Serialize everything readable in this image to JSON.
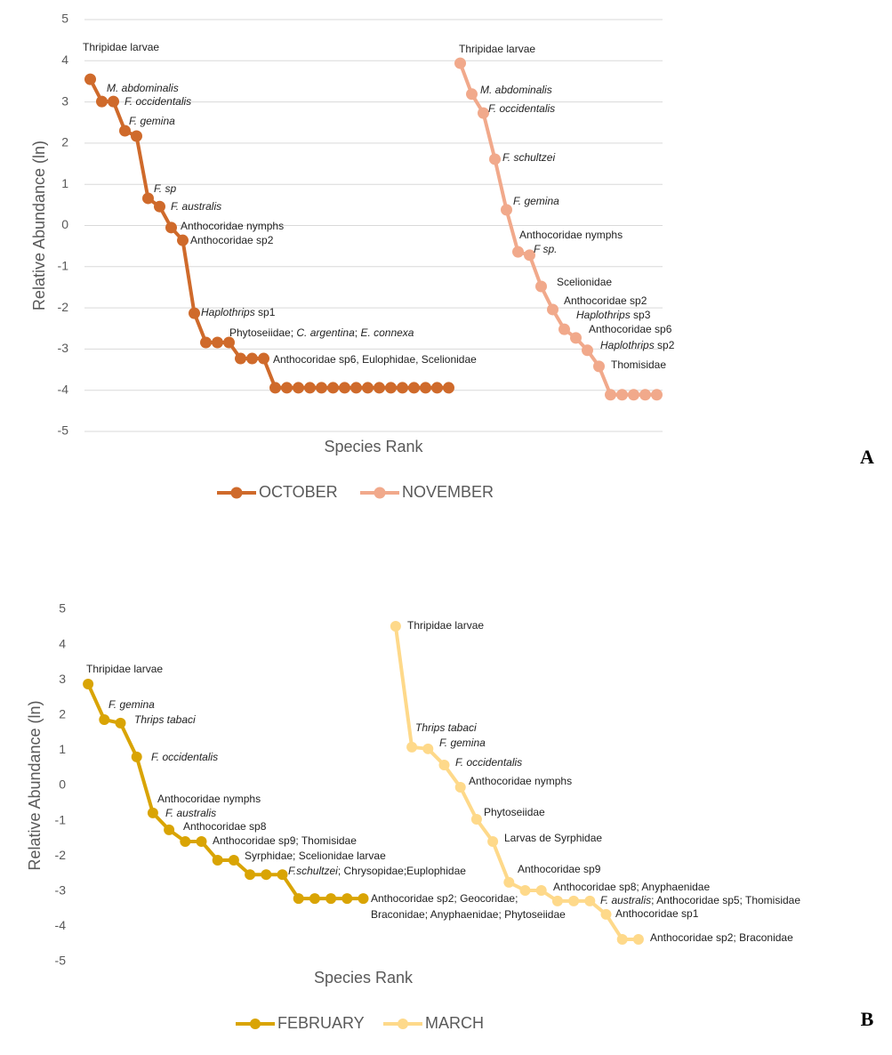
{
  "chart_data": [
    {
      "type": "line",
      "panel_label": "A",
      "y_label": "Relative Abundance (ln)",
      "x_label": "Species Rank",
      "ylim": [
        -5,
        5
      ],
      "yticks": [
        -5,
        -4,
        -3,
        -2,
        -1,
        0,
        1,
        2,
        3,
        4,
        5
      ],
      "grid": true,
      "legend": "bottom",
      "categories": [
        null,
        null,
        null,
        null,
        null,
        null,
        null,
        null,
        null,
        null,
        null,
        null,
        null,
        null,
        null,
        null,
        null,
        null,
        null,
        null,
        null,
        null,
        null,
        null,
        null,
        null,
        null,
        null,
        null,
        null,
        null,
        null,
        null,
        null,
        null,
        null,
        null,
        null,
        null,
        null,
        null,
        null,
        null,
        null,
        null,
        null,
        null,
        null,
        null,
        null
      ],
      "series": [
        {
          "name": "OCTOBER",
          "color": "#cf6a2b",
          "values": [
            3.55,
            3.01,
            3.01,
            2.3,
            2.17,
            0.66,
            0.46,
            -0.05,
            -0.36,
            -2.13,
            -2.84,
            -2.84,
            -2.84,
            -3.23,
            -3.23,
            -3.23,
            -3.94,
            -3.94,
            -3.94,
            -3.94,
            -3.94,
            -3.94,
            -3.94,
            -3.94,
            -3.94,
            -3.94,
            -3.94,
            -3.94,
            -3.94,
            -3.94,
            -3.94,
            -3.94,
            null,
            null,
            null,
            null,
            null,
            null,
            null,
            null,
            null,
            null,
            null,
            null,
            null,
            null,
            null,
            null,
            null,
            null
          ],
          "annotations": [
            [
              {
                "text": "Thripidae larvae",
                "italic": false
              }
            ],
            [
              {
                "text": "M. abdominalis",
                "italic": true
              }
            ],
            [
              {
                "text": "F. occidentalis",
                "italic": true
              }
            ],
            [
              {
                "text": "F. gemina",
                "italic": true
              }
            ],
            [
              {
                "text": "F. sp",
                "italic": true
              }
            ],
            [
              {
                "text": "F. australis",
                "italic": true
              }
            ],
            [
              {
                "text": "Anthocoridae nymphs",
                "italic": false
              }
            ],
            [
              {
                "text": "Anthocoridae sp2",
                "italic": false
              }
            ],
            [
              {
                "text": "Haplothrips",
                "italic": true
              },
              {
                "text": " sp1",
                "italic": false
              }
            ],
            [
              {
                "text": "Phytoseiidae; ",
                "italic": false
              },
              {
                "text": "C. argentina",
                "italic": true
              },
              {
                "text": "; ",
                "italic": false
              },
              {
                "text": "E. connexa",
                "italic": true
              }
            ],
            [
              {
                "text": "Anthocoridae sp6, Eulophidae, Scelionidae",
                "italic": false
              }
            ]
          ]
        },
        {
          "name": "NOVEMBER",
          "color": "#f1a98b",
          "values": [
            null,
            null,
            null,
            null,
            null,
            null,
            null,
            null,
            null,
            null,
            null,
            null,
            null,
            null,
            null,
            null,
            null,
            null,
            null,
            null,
            null,
            null,
            null,
            null,
            null,
            null,
            null,
            null,
            null,
            null,
            null,
            null,
            3.94,
            3.19,
            2.73,
            1.61,
            0.38,
            -0.64,
            -0.72,
            -1.48,
            -2.04,
            -2.52,
            -2.73,
            -3.03,
            -3.42,
            -4.11,
            -4.11,
            -4.11,
            -4.11,
            -4.11
          ],
          "annotations": [
            [
              {
                "text": "Thripidae larvae",
                "italic": false
              }
            ],
            [
              {
                "text": "M. abdominalis",
                "italic": true
              }
            ],
            [
              {
                "text": "F. occidentalis",
                "italic": true
              }
            ],
            [
              {
                "text": "F. schultzei",
                "italic": true
              }
            ],
            [
              {
                "text": "F. gemina",
                "italic": true
              }
            ],
            [
              {
                "text": "Anthocoridae nymphs",
                "italic": false
              }
            ],
            [
              {
                "text": "F sp.",
                "italic": true
              }
            ],
            [
              {
                "text": "Scelionidae",
                "italic": false
              }
            ],
            [
              {
                "text": "Anthocoridae sp2",
                "italic": false
              }
            ],
            [
              {
                "text": "Haplothrips",
                "italic": true
              },
              {
                "text": " sp3",
                "italic": false
              }
            ],
            [
              {
                "text": "Anthocoridae sp6",
                "italic": false
              }
            ],
            [
              {
                "text": "Haplothrips",
                "italic": true
              },
              {
                "text": " sp2",
                "italic": false
              }
            ],
            [
              {
                "text": "Thomisidae",
                "italic": false
              }
            ]
          ]
        }
      ]
    },
    {
      "type": "line",
      "panel_label": "B",
      "y_label": "Relative Abundance (ln)",
      "x_label": "Species Rank",
      "ylim": [
        -5,
        5
      ],
      "yticks": [
        -5,
        -4,
        -3,
        -2,
        -1,
        0,
        1,
        2,
        3,
        4,
        5
      ],
      "grid": false,
      "legend": "bottom",
      "categories": [
        null,
        null,
        null,
        null,
        null,
        null,
        null,
        null,
        null,
        null,
        null,
        null,
        null,
        null,
        null,
        null,
        null,
        null,
        null,
        null,
        null,
        null,
        null,
        null,
        null,
        null,
        null,
        null,
        null,
        null,
        null,
        null,
        null,
        null,
        null
      ],
      "series": [
        {
          "name": "FEBRUARY",
          "color": "#d9a404",
          "values": [
            2.88,
            1.87,
            1.77,
            0.81,
            -0.78,
            -1.26,
            -1.59,
            -1.59,
            -2.12,
            -2.12,
            -2.53,
            -2.53,
            -2.53,
            -3.21,
            -3.21,
            -3.21,
            -3.21,
            -3.21,
            null,
            null,
            null,
            null,
            null,
            null,
            null,
            null,
            null,
            null,
            null,
            null,
            null,
            null,
            null,
            null,
            null
          ],
          "annotations": [
            [
              {
                "text": "Thripidae larvae",
                "italic": false
              }
            ],
            [
              {
                "text": "F. gemina",
                "italic": true
              }
            ],
            [
              {
                "text": "Thrips tabaci",
                "italic": true
              }
            ],
            [
              {
                "text": "F. occidentalis",
                "italic": true
              }
            ],
            [
              {
                "text": "Anthocoridae nymphs",
                "italic": false
              }
            ],
            [
              {
                "text": "F. australis",
                "italic": true
              }
            ],
            [
              {
                "text": "Anthocoridae sp8",
                "italic": false
              }
            ],
            [
              {
                "text": "Anthocoridae sp9; Thomisidae",
                "italic": false
              }
            ],
            [
              {
                "text": "Syrphidae; Scelionidae larvae",
                "italic": false
              }
            ],
            [
              {
                "text": "F.schultzei",
                "italic": true
              },
              {
                "text": "; Chrysopidae;Euplophidae",
                "italic": false
              }
            ],
            [
              {
                "text": "Anthocoridae sp2; Geocoridae;",
                "italic": false
              }
            ],
            [
              {
                "text": "Braconidae; Anyphaenidae; Phytoseiidae",
                "italic": false
              }
            ]
          ]
        },
        {
          "name": "MARCH",
          "color": "#fed98a",
          "values": [
            null,
            null,
            null,
            null,
            null,
            null,
            null,
            null,
            null,
            null,
            null,
            null,
            null,
            null,
            null,
            null,
            null,
            null,
            null,
            4.52,
            1.09,
            1.04,
            0.58,
            -0.05,
            -0.96,
            -1.59,
            -2.75,
            -2.98,
            -2.98,
            -3.28,
            -3.28,
            -3.28,
            -3.66,
            -4.37,
            -4.37
          ],
          "annotations": [
            [
              {
                "text": "Thripidae larvae",
                "italic": false
              }
            ],
            [
              {
                "text": "Thrips tabaci",
                "italic": true
              }
            ],
            [
              {
                "text": "F. gemina",
                "italic": true
              }
            ],
            [
              {
                "text": "F. occidentalis",
                "italic": true
              }
            ],
            [
              {
                "text": "Anthocoridae nymphs",
                "italic": false
              }
            ],
            [
              {
                "text": "Phytoseiidae",
                "italic": false
              }
            ],
            [
              {
                "text": "Larvas de Syrphidae",
                "italic": false
              }
            ],
            [
              {
                "text": "Anthocoridae sp9",
                "italic": false
              }
            ],
            [
              {
                "text": "Anthocoridae sp8; Anyphaenidae",
                "italic": false
              }
            ],
            [
              {
                "text": "F. australis",
                "italic": true
              },
              {
                "text": "; Anthocoridae sp5; Thomisidae",
                "italic": false
              }
            ],
            [
              {
                "text": "Anthocoridae sp1",
                "italic": false
              }
            ],
            [
              {
                "text": "Anthocoridae sp2; Braconidae",
                "italic": false
              }
            ]
          ]
        }
      ]
    }
  ]
}
